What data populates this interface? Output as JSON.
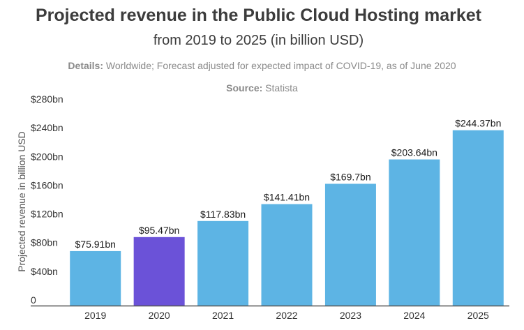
{
  "header": {
    "title": "Projected revenue in the Public Cloud Hosting market",
    "subtitle": "from 2019 to 2025 (in billion USD)",
    "details_label": "Details:",
    "details_text": " Worldwide; Forecast adjusted for expected impact of COVID-19, as of June 2020",
    "source_label": "Source:",
    "source_text": " Statista"
  },
  "chart_data": {
    "type": "bar",
    "ylabel": "Projected revenue in billion USD",
    "ylim": [
      0,
      280
    ],
    "yticks": [
      {
        "value": 0,
        "label": "0"
      },
      {
        "value": 40,
        "label": "$40bn"
      },
      {
        "value": 80,
        "label": "$80bn"
      },
      {
        "value": 120,
        "label": "$120bn"
      },
      {
        "value": 160,
        "label": "$160bn"
      },
      {
        "value": 200,
        "label": "$200bn"
      },
      {
        "value": 240,
        "label": "$240bn"
      },
      {
        "value": 280,
        "label": "$280bn"
      }
    ],
    "categories": [
      "2019",
      "2020",
      "2021",
      "2022",
      "2023",
      "2024",
      "2025"
    ],
    "values": [
      75.91,
      95.47,
      117.83,
      141.41,
      169.7,
      203.64,
      244.37
    ],
    "value_labels": [
      "$75.91bn",
      "$95.47bn",
      "$117.83bn",
      "$141.41bn",
      "$169.7bn",
      "$203.64bn",
      "$244.37bn"
    ],
    "highlight_category": "2020",
    "grid": false,
    "colors": {
      "bar": "#5db4e4",
      "highlight": "#6b52d8",
      "axis": "#555555"
    }
  }
}
